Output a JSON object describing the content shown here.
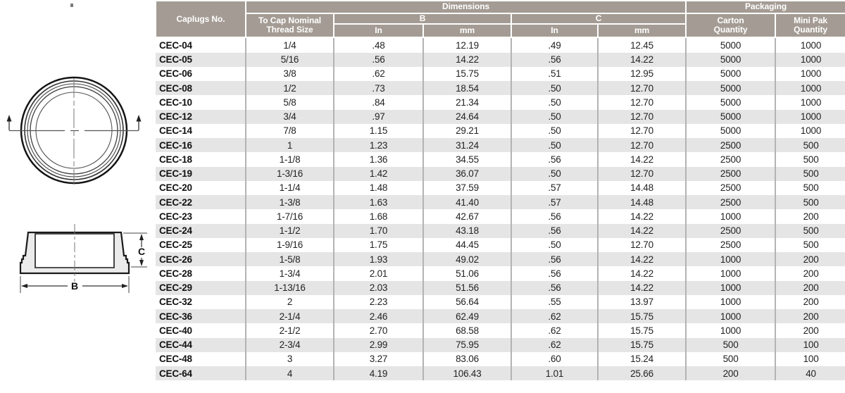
{
  "header": {
    "caplugs_no": "Caplugs No.",
    "dimensions": "Dimensions",
    "packaging": "Packaging",
    "thread_size": "To Cap Nominal\nThread Size",
    "b": "B",
    "c": "C",
    "b_in": "In",
    "b_mm": "mm",
    "c_in": "In",
    "c_mm": "mm",
    "carton": "Carton\nQuantity",
    "mini_pak": "Mini Pak\nQuantity"
  },
  "diagram": {
    "b_label": "B",
    "c_label": "C"
  },
  "colors": {
    "header_bg": "#a49c94",
    "row_stripe": "#e5e5e6",
    "column_divider": "#b3b3b3",
    "text": "#232323"
  },
  "table": {
    "columns": [
      "part",
      "thread",
      "b_in",
      "b_mm",
      "c_in",
      "c_mm",
      "carton",
      "mini_pak"
    ],
    "rows": [
      {
        "part": "CEC-04",
        "thread": "1/4",
        "b_in": ".48",
        "b_mm": "12.19",
        "c_in": ".49",
        "c_mm": "12.45",
        "carton": "5000",
        "mini_pak": "1000"
      },
      {
        "part": "CEC-05",
        "thread": "5/16",
        "b_in": ".56",
        "b_mm": "14.22",
        "c_in": ".56",
        "c_mm": "14.22",
        "carton": "5000",
        "mini_pak": "1000"
      },
      {
        "part": "CEC-06",
        "thread": "3/8",
        "b_in": ".62",
        "b_mm": "15.75",
        "c_in": ".51",
        "c_mm": "12.95",
        "carton": "5000",
        "mini_pak": "1000"
      },
      {
        "part": "CEC-08",
        "thread": "1/2",
        "b_in": ".73",
        "b_mm": "18.54",
        "c_in": ".50",
        "c_mm": "12.70",
        "carton": "5000",
        "mini_pak": "1000"
      },
      {
        "part": "CEC-10",
        "thread": "5/8",
        "b_in": ".84",
        "b_mm": "21.34",
        "c_in": ".50",
        "c_mm": "12.70",
        "carton": "5000",
        "mini_pak": "1000"
      },
      {
        "part": "CEC-12",
        "thread": "3/4",
        "b_in": ".97",
        "b_mm": "24.64",
        "c_in": ".50",
        "c_mm": "12.70",
        "carton": "5000",
        "mini_pak": "1000"
      },
      {
        "part": "CEC-14",
        "thread": "7/8",
        "b_in": "1.15",
        "b_mm": "29.21",
        "c_in": ".50",
        "c_mm": "12.70",
        "carton": "5000",
        "mini_pak": "1000"
      },
      {
        "part": "CEC-16",
        "thread": "1",
        "b_in": "1.23",
        "b_mm": "31.24",
        "c_in": ".50",
        "c_mm": "12.70",
        "carton": "2500",
        "mini_pak": "500"
      },
      {
        "part": "CEC-18",
        "thread": "1-1/8",
        "b_in": "1.36",
        "b_mm": "34.55",
        "c_in": ".56",
        "c_mm": "14.22",
        "carton": "2500",
        "mini_pak": "500"
      },
      {
        "part": "CEC-19",
        "thread": "1-3/16",
        "b_in": "1.42",
        "b_mm": "36.07",
        "c_in": ".50",
        "c_mm": "12.70",
        "carton": "2500",
        "mini_pak": "500"
      },
      {
        "part": "CEC-20",
        "thread": "1-1/4",
        "b_in": "1.48",
        "b_mm": "37.59",
        "c_in": ".57",
        "c_mm": "14.48",
        "carton": "2500",
        "mini_pak": "500"
      },
      {
        "part": "CEC-22",
        "thread": "1-3/8",
        "b_in": "1.63",
        "b_mm": "41.40",
        "c_in": ".57",
        "c_mm": "14.48",
        "carton": "2500",
        "mini_pak": "500"
      },
      {
        "part": "CEC-23",
        "thread": "1-7/16",
        "b_in": "1.68",
        "b_mm": "42.67",
        "c_in": ".56",
        "c_mm": "14.22",
        "carton": "1000",
        "mini_pak": "200"
      },
      {
        "part": "CEC-24",
        "thread": "1-1/2",
        "b_in": "1.70",
        "b_mm": "43.18",
        "c_in": ".56",
        "c_mm": "14.22",
        "carton": "2500",
        "mini_pak": "500"
      },
      {
        "part": "CEC-25",
        "thread": "1-9/16",
        "b_in": "1.75",
        "b_mm": "44.45",
        "c_in": ".50",
        "c_mm": "12.70",
        "carton": "2500",
        "mini_pak": "500"
      },
      {
        "part": "CEC-26",
        "thread": "1-5/8",
        "b_in": "1.93",
        "b_mm": "49.02",
        "c_in": ".56",
        "c_mm": "14.22",
        "carton": "1000",
        "mini_pak": "200"
      },
      {
        "part": "CEC-28",
        "thread": "1-3/4",
        "b_in": "2.01",
        "b_mm": "51.06",
        "c_in": ".56",
        "c_mm": "14.22",
        "carton": "1000",
        "mini_pak": "200"
      },
      {
        "part": "CEC-29",
        "thread": "1-13/16",
        "b_in": "2.03",
        "b_mm": "51.56",
        "c_in": ".56",
        "c_mm": "14.22",
        "carton": "1000",
        "mini_pak": "200"
      },
      {
        "part": "CEC-32",
        "thread": "2",
        "b_in": "2.23",
        "b_mm": "56.64",
        "c_in": ".55",
        "c_mm": "13.97",
        "carton": "1000",
        "mini_pak": "200"
      },
      {
        "part": "CEC-36",
        "thread": "2-1/4",
        "b_in": "2.46",
        "b_mm": "62.49",
        "c_in": ".62",
        "c_mm": "15.75",
        "carton": "1000",
        "mini_pak": "200"
      },
      {
        "part": "CEC-40",
        "thread": "2-1/2",
        "b_in": "2.70",
        "b_mm": "68.58",
        "c_in": ".62",
        "c_mm": "15.75",
        "carton": "1000",
        "mini_pak": "200"
      },
      {
        "part": "CEC-44",
        "thread": "2-3/4",
        "b_in": "2.99",
        "b_mm": "75.95",
        "c_in": ".62",
        "c_mm": "15.75",
        "carton": "500",
        "mini_pak": "100"
      },
      {
        "part": "CEC-48",
        "thread": "3",
        "b_in": "3.27",
        "b_mm": "83.06",
        "c_in": ".60",
        "c_mm": "15.24",
        "carton": "500",
        "mini_pak": "100"
      },
      {
        "part": "CEC-64",
        "thread": "4",
        "b_in": "4.19",
        "b_mm": "106.43",
        "c_in": "1.01",
        "c_mm": "25.66",
        "carton": "200",
        "mini_pak": "40"
      }
    ]
  }
}
